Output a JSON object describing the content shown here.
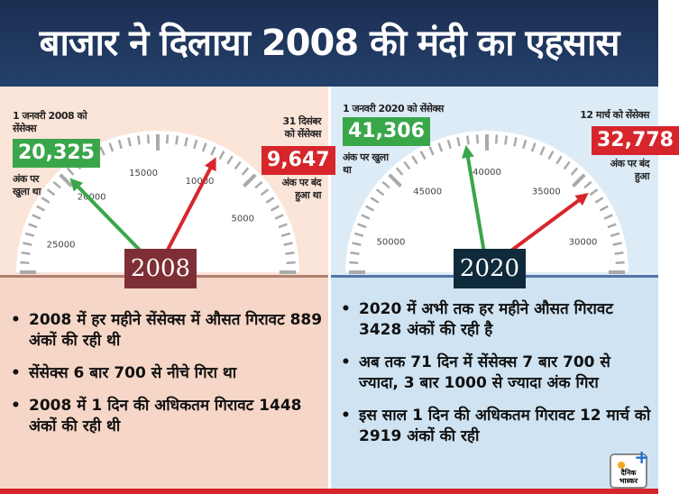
{
  "title": "बाजार ने दिलाया 2008 की मंदी का एहसास",
  "left": {
    "year": "2008",
    "start_label": "1 जनवरी 2008 को सेंसेक्स",
    "start_value": "20,325",
    "start_note": "अंक पर खुला था",
    "end_label": "31 दिसंबर को सेंसेक्स",
    "end_value": "9,647",
    "end_note": "अंक पर बंद हुआ था",
    "ticks": [
      "25000",
      "20000",
      "15000",
      "10000",
      "5000"
    ],
    "gauge": {
      "min": 0,
      "max": 27500,
      "start": 20325,
      "end": 9647,
      "reversed": true
    },
    "bullets": [
      "2008 में हर महीने सेंसेक्स में औसत गिरावट 889 अंकों की रही थी",
      "सेंसेक्स 6 बार 700 से नीचे गिरा था",
      "2008 में 1 दिन की अधिकतम गिरावट 1448 अंकों की रही थी"
    ]
  },
  "right": {
    "year": "2020",
    "start_label": "1 जनवरी 2020 को सेंसेक्स",
    "start_value": "41,306",
    "start_note": "अंक पर खुला था",
    "end_label": "12 मार्च को सेंसेक्स",
    "end_value": "32,778",
    "end_note": "अंक पर बंद हुआ",
    "ticks": [
      "50000",
      "45000",
      "40000",
      "35000",
      "30000"
    ],
    "gauge": {
      "min": 27500,
      "max": 52500,
      "start": 41306,
      "end": 32778,
      "reversed": true
    },
    "bullets": [
      "2020 में अभी तक हर महीने औसत गिरावट 3428 अंकों की रही है",
      "अब तक 71 दिन में सेंसेक्स 7 बार 700 से ज्यादा, 3 बार 1000 से ज्यादा अंक गिरा",
      "इस साल 1 दिन की अधिकतम गिरावट 12 मार्च को 2919 अंकों की रही"
    ]
  },
  "colors": {
    "header": "#1c2f52",
    "up": "#3aa64a",
    "down": "#d6262c",
    "year2008": "#7e2f36",
    "year2020": "#0f2a3a"
  },
  "logo": "दैनिक भास्कर"
}
